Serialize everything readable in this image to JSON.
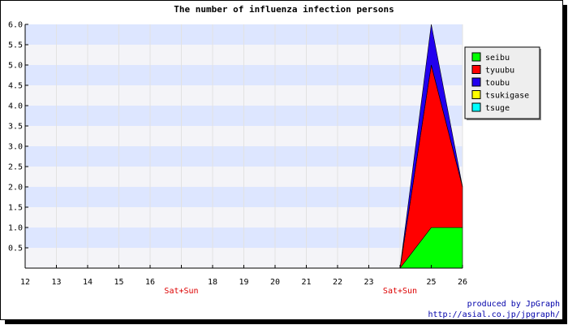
{
  "chart_data": {
    "type": "area",
    "stacked": true,
    "title": "The number of influenza infection persons",
    "xlabel": "",
    "ylabel": "",
    "x": [
      12,
      13,
      14,
      15,
      16,
      17,
      18,
      19,
      20,
      21,
      22,
      23,
      24,
      25,
      26
    ],
    "x_tick_labels": [
      "12",
      "13",
      "14",
      "15",
      "16",
      "Sat+Sun",
      "18",
      "19",
      "20",
      "21",
      "22",
      "23",
      "Sat+Sun",
      "25",
      "26"
    ],
    "weekend_labels": [
      "Sat+Sun",
      "Sat+Sun"
    ],
    "ylim": [
      0,
      6.0
    ],
    "y_ticks": [
      "0.5",
      "1.0",
      "1.5",
      "2.0",
      "2.5",
      "3.0",
      "3.5",
      "4.0",
      "4.5",
      "5.0",
      "5.5",
      "6.0"
    ],
    "series": [
      {
        "name": "seibu",
        "color": "#00ff00",
        "values": [
          0,
          0,
          0,
          0,
          0,
          0,
          0,
          0,
          0,
          0,
          0,
          0,
          0,
          1,
          1
        ]
      },
      {
        "name": "tyuubu",
        "color": "#ff0000",
        "values": [
          0,
          0,
          0,
          0,
          0,
          0,
          0,
          0,
          0,
          0,
          0,
          0,
          0,
          4,
          1
        ]
      },
      {
        "name": "toubu",
        "color": "#2200ee",
        "values": [
          0,
          0,
          0,
          0,
          0,
          0,
          0,
          0,
          0,
          0,
          0,
          0,
          0,
          1,
          0
        ]
      },
      {
        "name": "tsukigase",
        "color": "#ffff00",
        "values": [
          0,
          0,
          0,
          0,
          0,
          0,
          0,
          0,
          0,
          0,
          0,
          0,
          0,
          0,
          0
        ]
      },
      {
        "name": "tsuge",
        "color": "#00ffff",
        "values": [
          0,
          0,
          0,
          0,
          0,
          0,
          0,
          0,
          0,
          0,
          0,
          0,
          0,
          0,
          0
        ]
      }
    ],
    "band_colors": [
      "#f4f4f8",
      "#dde6ff"
    ],
    "grid": true,
    "legend_position": "top-right"
  },
  "credit": {
    "line1": "produced by JpGraph",
    "line2": "http://asial.co.jp/jpgraph/"
  }
}
